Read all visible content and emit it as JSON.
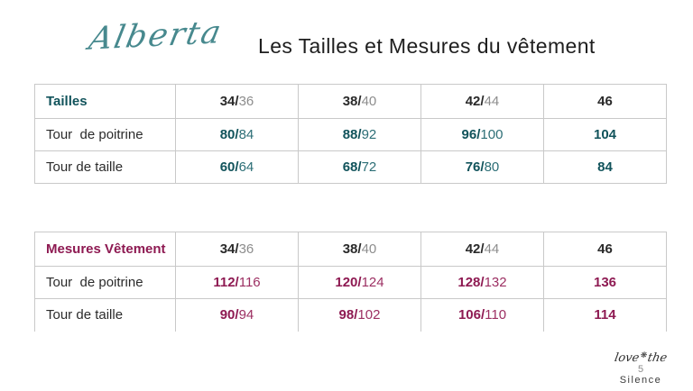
{
  "header": {
    "brand": "Alberta",
    "title": "Les Tailles et Mesures du vêtement"
  },
  "colors": {
    "brand_teal": "#47898e",
    "table1_accent": "#11535b",
    "table1_secondary": "#2c6e76",
    "table2_accent": "#8e1a52",
    "table2_secondary": "#9c2f62",
    "size_primary": "#2a2a2a",
    "size_secondary": "#8d8d8d",
    "border": "#c9c9c9"
  },
  "tables": [
    {
      "title": "Tailles",
      "columns": [
        {
          "strong": "34/",
          "light": "36"
        },
        {
          "strong": "38/",
          "light": "40"
        },
        {
          "strong": "42/",
          "light": "44"
        },
        {
          "strong": "46",
          "light": ""
        }
      ],
      "rows": [
        {
          "label": "Tour  de poitrine",
          "cells": [
            {
              "strong": "80/",
              "light": "84"
            },
            {
              "strong": "88/",
              "light": "92"
            },
            {
              "strong": "96/",
              "light": "100"
            },
            {
              "strong": "104",
              "light": ""
            }
          ]
        },
        {
          "label": "Tour de taille",
          "cells": [
            {
              "strong": "60/",
              "light": "64"
            },
            {
              "strong": "68/",
              "light": "72"
            },
            {
              "strong": "76/",
              "light": "80"
            },
            {
              "strong": "84",
              "light": ""
            }
          ]
        }
      ]
    },
    {
      "title": "Mesures Vêtement",
      "columns": [
        {
          "strong": "34/",
          "light": "36"
        },
        {
          "strong": "38/",
          "light": "40"
        },
        {
          "strong": "42/",
          "light": "44"
        },
        {
          "strong": "46",
          "light": ""
        }
      ],
      "rows": [
        {
          "label": "Tour  de poitrine",
          "cells": [
            {
              "strong": "112/",
              "light": "116"
            },
            {
              "strong": "120/",
              "light": "124"
            },
            {
              "strong": "128/",
              "light": "132"
            },
            {
              "strong": "136",
              "light": ""
            }
          ]
        },
        {
          "label": "Tour de taille",
          "cells": [
            {
              "strong": "90/",
              "light": "94"
            },
            {
              "strong": "98/",
              "light": "102"
            },
            {
              "strong": "106/",
              "light": "110"
            },
            {
              "strong": "114",
              "light": ""
            }
          ]
        }
      ]
    }
  ],
  "footer": {
    "script_left": "love",
    "flower_icon": "❋",
    "script_right": "the",
    "page_number": "5",
    "brand_bottom": "Silence"
  }
}
